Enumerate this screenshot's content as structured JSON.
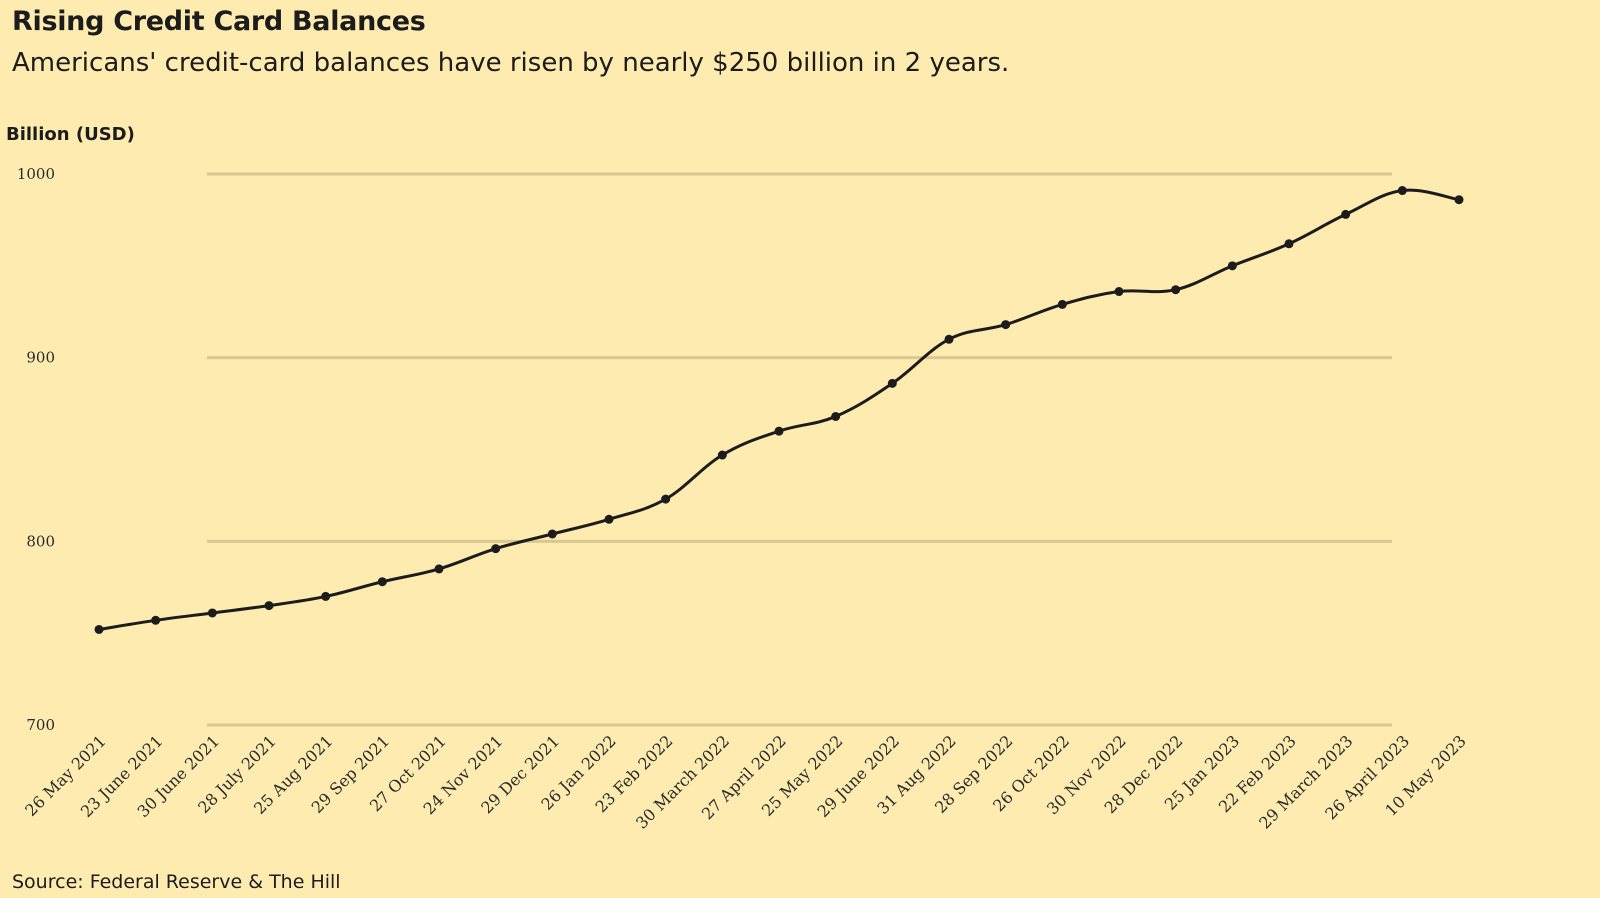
{
  "header": {
    "title": "Rising Credit Card Balances",
    "subtitle": "Americans' credit-card balances have risen by nearly $250 billion in 2 years."
  },
  "footer": {
    "source": "Source: Federal Reserve & The Hill"
  },
  "colors": {
    "background": "#fdebb0",
    "line": "#1c1c1c",
    "grid": "#d9c890"
  },
  "chart_data": {
    "type": "line",
    "ylabel": "Billion (USD)",
    "ylim": [
      700,
      1000
    ],
    "yticks": [
      700,
      800,
      900,
      1000
    ],
    "grid": true,
    "categories": [
      "26 May 2021",
      "23 June 2021",
      "30 June 2021",
      "28 July 2021",
      "25 Aug 2021",
      "29 Sep 2021",
      "27 Oct 2021",
      "24 Nov 2021",
      "29 Dec 2021",
      "26 Jan 2022",
      "23 Feb 2022",
      "30 March 2022",
      "27 April 2022",
      "25 May 2022",
      "29 June 2022",
      "31 Aug 2022",
      "28 Sep 2022",
      "26 Oct 2022",
      "30 Nov 2022",
      "28 Dec 2022",
      "25 Jan 2023",
      "22 Feb 2023",
      "29 March 2023",
      "26 April 2023",
      "10 May 2023"
    ],
    "values": [
      752,
      757,
      761,
      765,
      770,
      778,
      785,
      796,
      804,
      812,
      823,
      847,
      860,
      868,
      886,
      910,
      918,
      929,
      936,
      937,
      950,
      962,
      978,
      991,
      986
    ]
  }
}
